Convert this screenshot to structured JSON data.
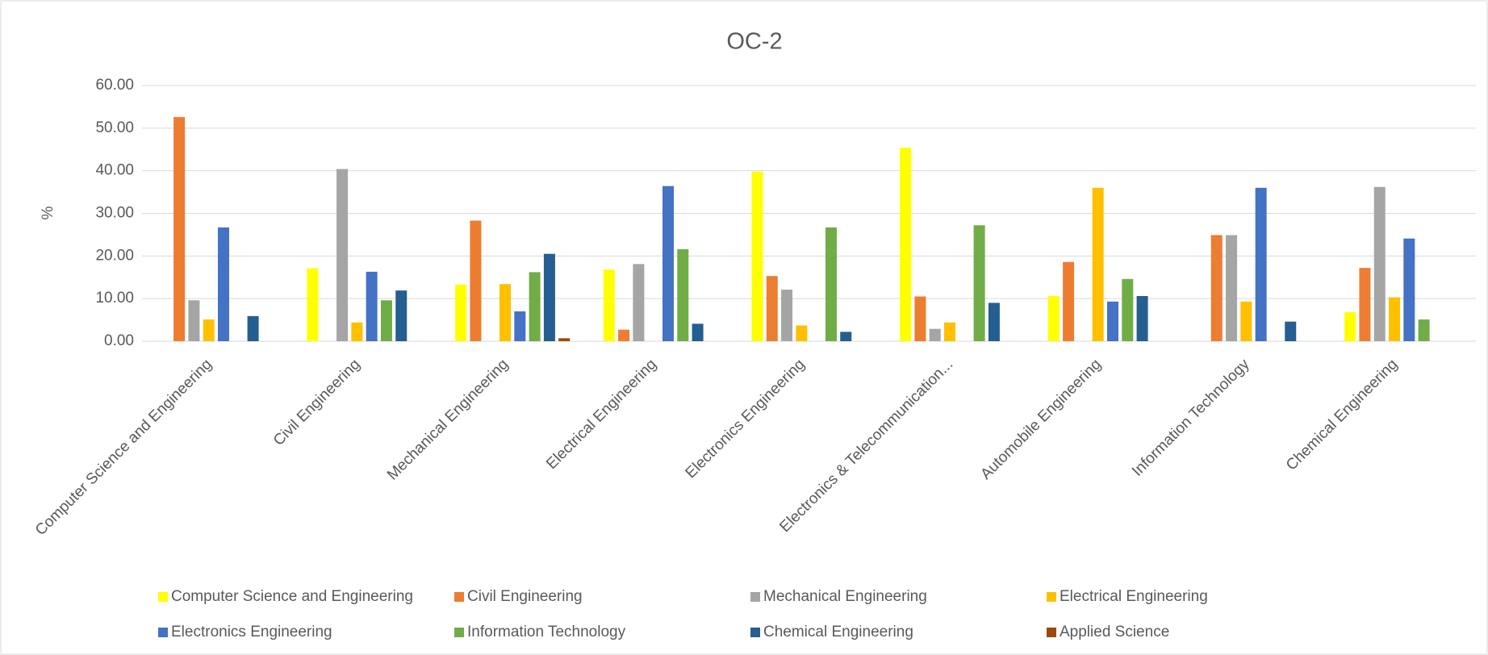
{
  "chart_data": {
    "type": "bar",
    "title": "OC-2",
    "y_label": "%",
    "categories": [
      "Computer Science and Engineering",
      "Civil Engineering",
      "Mechanical Engineering",
      "Electrical Engineering",
      "Electronics Engineering",
      "Electronics & Telecommunication...",
      "Automobile Engineering",
      "Information Technology",
      "Chemical Engineering"
    ],
    "series": [
      {
        "name": "Computer Science and Engineering",
        "color": "#ffff00",
        "values": [
          0,
          17.1,
          13.3,
          16.8,
          39.8,
          45.4,
          10.6,
          0,
          6.8
        ]
      },
      {
        "name": "Civil Engineering",
        "color": "#ed7d31",
        "values": [
          52.6,
          0,
          28.3,
          2.7,
          15.3,
          10.5,
          18.6,
          24.9,
          17.2
        ]
      },
      {
        "name": "Mechanical Engineering",
        "color": "#a5a5a5",
        "values": [
          9.6,
          40.4,
          0,
          18.1,
          12.1,
          2.9,
          0,
          24.9,
          36.2
        ]
      },
      {
        "name": "Electrical Engineering",
        "color": "#ffc000",
        "values": [
          5.1,
          4.4,
          13.4,
          0,
          3.7,
          4.4,
          36.0,
          9.3,
          10.3
        ]
      },
      {
        "name": "Electronics Engineering",
        "color": "#4472c4",
        "values": [
          26.7,
          16.3,
          7.0,
          36.4,
          0,
          0,
          9.3,
          36.0,
          24.1
        ]
      },
      {
        "name": "Information Technology",
        "color": "#70ad47",
        "values": [
          0,
          9.6,
          16.2,
          21.6,
          26.7,
          27.2,
          14.6,
          0,
          5.1
        ]
      },
      {
        "name": "Chemical Engineering",
        "color": "#255e91",
        "values": [
          5.9,
          11.9,
          20.5,
          4.1,
          2.2,
          9.0,
          10.6,
          4.6,
          0
        ]
      },
      {
        "name": "Applied Science",
        "color": "#9e480e",
        "values": [
          0,
          0,
          0.7,
          0,
          0,
          0,
          0,
          0,
          0
        ]
      }
    ],
    "ylim": [
      0,
      60
    ],
    "yticks": [
      {
        "value": 0,
        "label": "0.00"
      },
      {
        "value": 10,
        "label": "10.00"
      },
      {
        "value": 20,
        "label": "20.00"
      },
      {
        "value": 30,
        "label": "30.00"
      },
      {
        "value": 40,
        "label": "40.00"
      },
      {
        "value": 50,
        "label": "50.00"
      },
      {
        "value": 60,
        "label": "60.00"
      }
    ],
    "grid": true,
    "legend": "bottom"
  }
}
